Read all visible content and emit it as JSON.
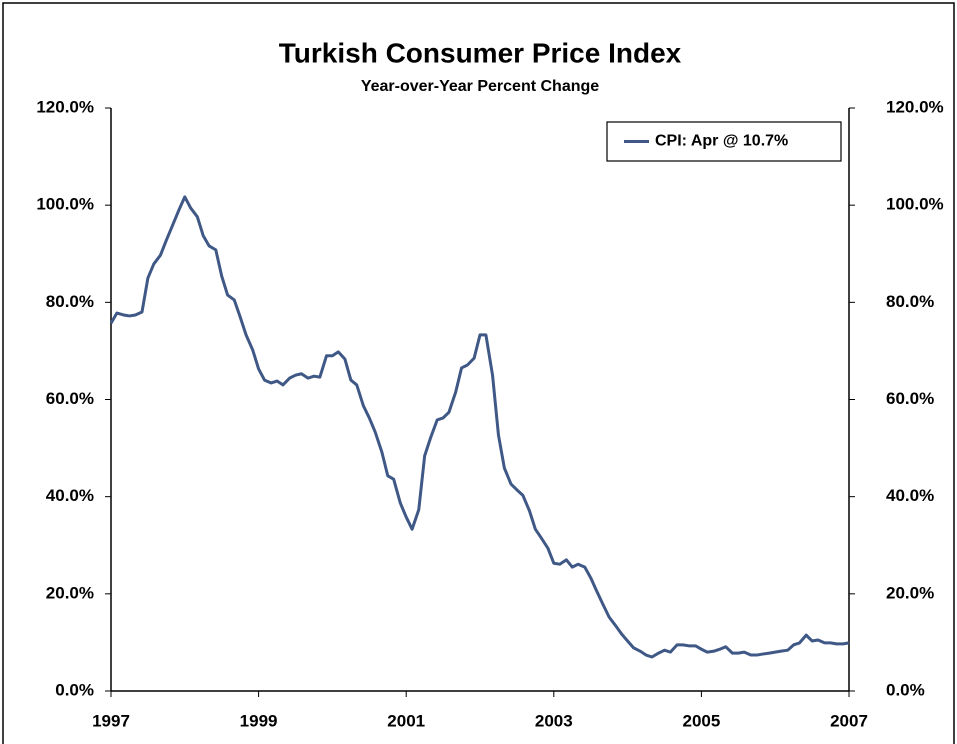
{
  "chart_data": {
    "type": "line",
    "title": "Turkish Consumer Price Index",
    "subtitle": "Year-over-Year Percent Change",
    "x": [
      1997,
      1997.08,
      1997.17,
      1997.25,
      1997.33,
      1997.42,
      1997.5,
      1997.58,
      1997.67,
      1997.75,
      1997.83,
      1997.92,
      1998,
      1998.08,
      1998.17,
      1998.25,
      1998.33,
      1998.42,
      1998.5,
      1998.58,
      1998.67,
      1998.75,
      1998.83,
      1998.92,
      1999,
      1999.08,
      1999.17,
      1999.25,
      1999.33,
      1999.42,
      1999.5,
      1999.58,
      1999.67,
      1999.75,
      1999.83,
      1999.92,
      2000,
      2000.08,
      2000.17,
      2000.25,
      2000.33,
      2000.42,
      2000.5,
      2000.58,
      2000.67,
      2000.75,
      2000.83,
      2000.92,
      2001,
      2001.08,
      2001.17,
      2001.25,
      2001.33,
      2001.42,
      2001.5,
      2001.58,
      2001.67,
      2001.75,
      2001.83,
      2001.92,
      2002,
      2002.08,
      2002.17,
      2002.25,
      2002.33,
      2002.42,
      2002.5,
      2002.58,
      2002.67,
      2002.75,
      2002.83,
      2002.92,
      2003,
      2003.08,
      2003.17,
      2003.25,
      2003.33,
      2003.42,
      2003.5,
      2003.58,
      2003.67,
      2003.75,
      2003.83,
      2003.92,
      2004,
      2004.08,
      2004.17,
      2004.25,
      2004.33,
      2004.42,
      2004.5,
      2004.58,
      2004.67,
      2004.75,
      2004.83,
      2004.92,
      2005,
      2005.08,
      2005.17,
      2005.25,
      2005.33,
      2005.42,
      2005.5,
      2005.58,
      2005.67,
      2005.75,
      2005.83,
      2005.92,
      2006,
      2006.08,
      2006.17,
      2006.25,
      2006.33,
      2006.42,
      2006.5,
      2006.58,
      2006.67,
      2006.75,
      2006.83,
      2006.92,
      2007
    ],
    "series": [
      {
        "name": "CPI: Apr @ 10.7%",
        "color": "#3f5886",
        "values": [
          75.7,
          77.8,
          77.4,
          77.2,
          77.4,
          78.0,
          85.0,
          87.9,
          89.7,
          92.8,
          95.7,
          99.0,
          101.7,
          99.4,
          97.6,
          93.7,
          91.6,
          90.8,
          85.4,
          81.5,
          80.5,
          77.0,
          73.3,
          70.2,
          66.3,
          64.0,
          63.4,
          63.8,
          63.0,
          64.4,
          65.0,
          65.3,
          64.4,
          64.8,
          64.6,
          69.0,
          69.0,
          69.8,
          68.3,
          64.0,
          63.0,
          58.7,
          56.2,
          53.3,
          49.2,
          44.3,
          43.6,
          38.7,
          35.8,
          33.3,
          37.3,
          48.4,
          52.1,
          55.8,
          56.2,
          57.4,
          61.5,
          66.5,
          67.1,
          68.5,
          73.3,
          73.3,
          65.0,
          52.7,
          45.9,
          42.6,
          41.4,
          40.3,
          37.1,
          33.3,
          31.5,
          29.4,
          26.3,
          26.1,
          27.0,
          25.5,
          26.1,
          25.5,
          23.3,
          20.6,
          17.7,
          15.2,
          13.6,
          11.7,
          10.3,
          8.9,
          8.2,
          7.4,
          7.0,
          7.8,
          8.4,
          8.0,
          9.5,
          9.5,
          9.3,
          9.3,
          8.6,
          8.0,
          8.2,
          8.6,
          9.1,
          7.8,
          7.8,
          8.0,
          7.4,
          7.4,
          7.6,
          7.8,
          8.0,
          8.2,
          8.4,
          9.5,
          9.9,
          11.5,
          10.3,
          10.5,
          9.9,
          9.9,
          9.7,
          9.7,
          9.9
        ]
      }
    ],
    "xlim": [
      1997,
      2007
    ],
    "xticks": [
      1997,
      1999,
      2001,
      2003,
      2005,
      2007
    ],
    "ylim": [
      0,
      120
    ],
    "yticks": [
      {
        "value": 0,
        "label": "0.0%"
      },
      {
        "value": 20,
        "label": "20.0%"
      },
      {
        "value": 40,
        "label": "40.0%"
      },
      {
        "value": 60,
        "label": "60.0%"
      },
      {
        "value": 80,
        "label": "80.0%"
      },
      {
        "value": 100,
        "label": "100.0%"
      },
      {
        "value": 120,
        "label": "120.0%"
      }
    ],
    "y2lim": [
      0,
      120
    ],
    "y2ticks": [
      {
        "value": 0,
        "label": "0.0%"
      },
      {
        "value": 20,
        "label": "20.0%"
      },
      {
        "value": 40,
        "label": "40.0%"
      },
      {
        "value": 60,
        "label": "60.0%"
      },
      {
        "value": 80,
        "label": "80.0%"
      },
      {
        "value": 100,
        "label": "100.0%"
      },
      {
        "value": 120,
        "label": "120.0%"
      }
    ],
    "legend": "upper right"
  }
}
